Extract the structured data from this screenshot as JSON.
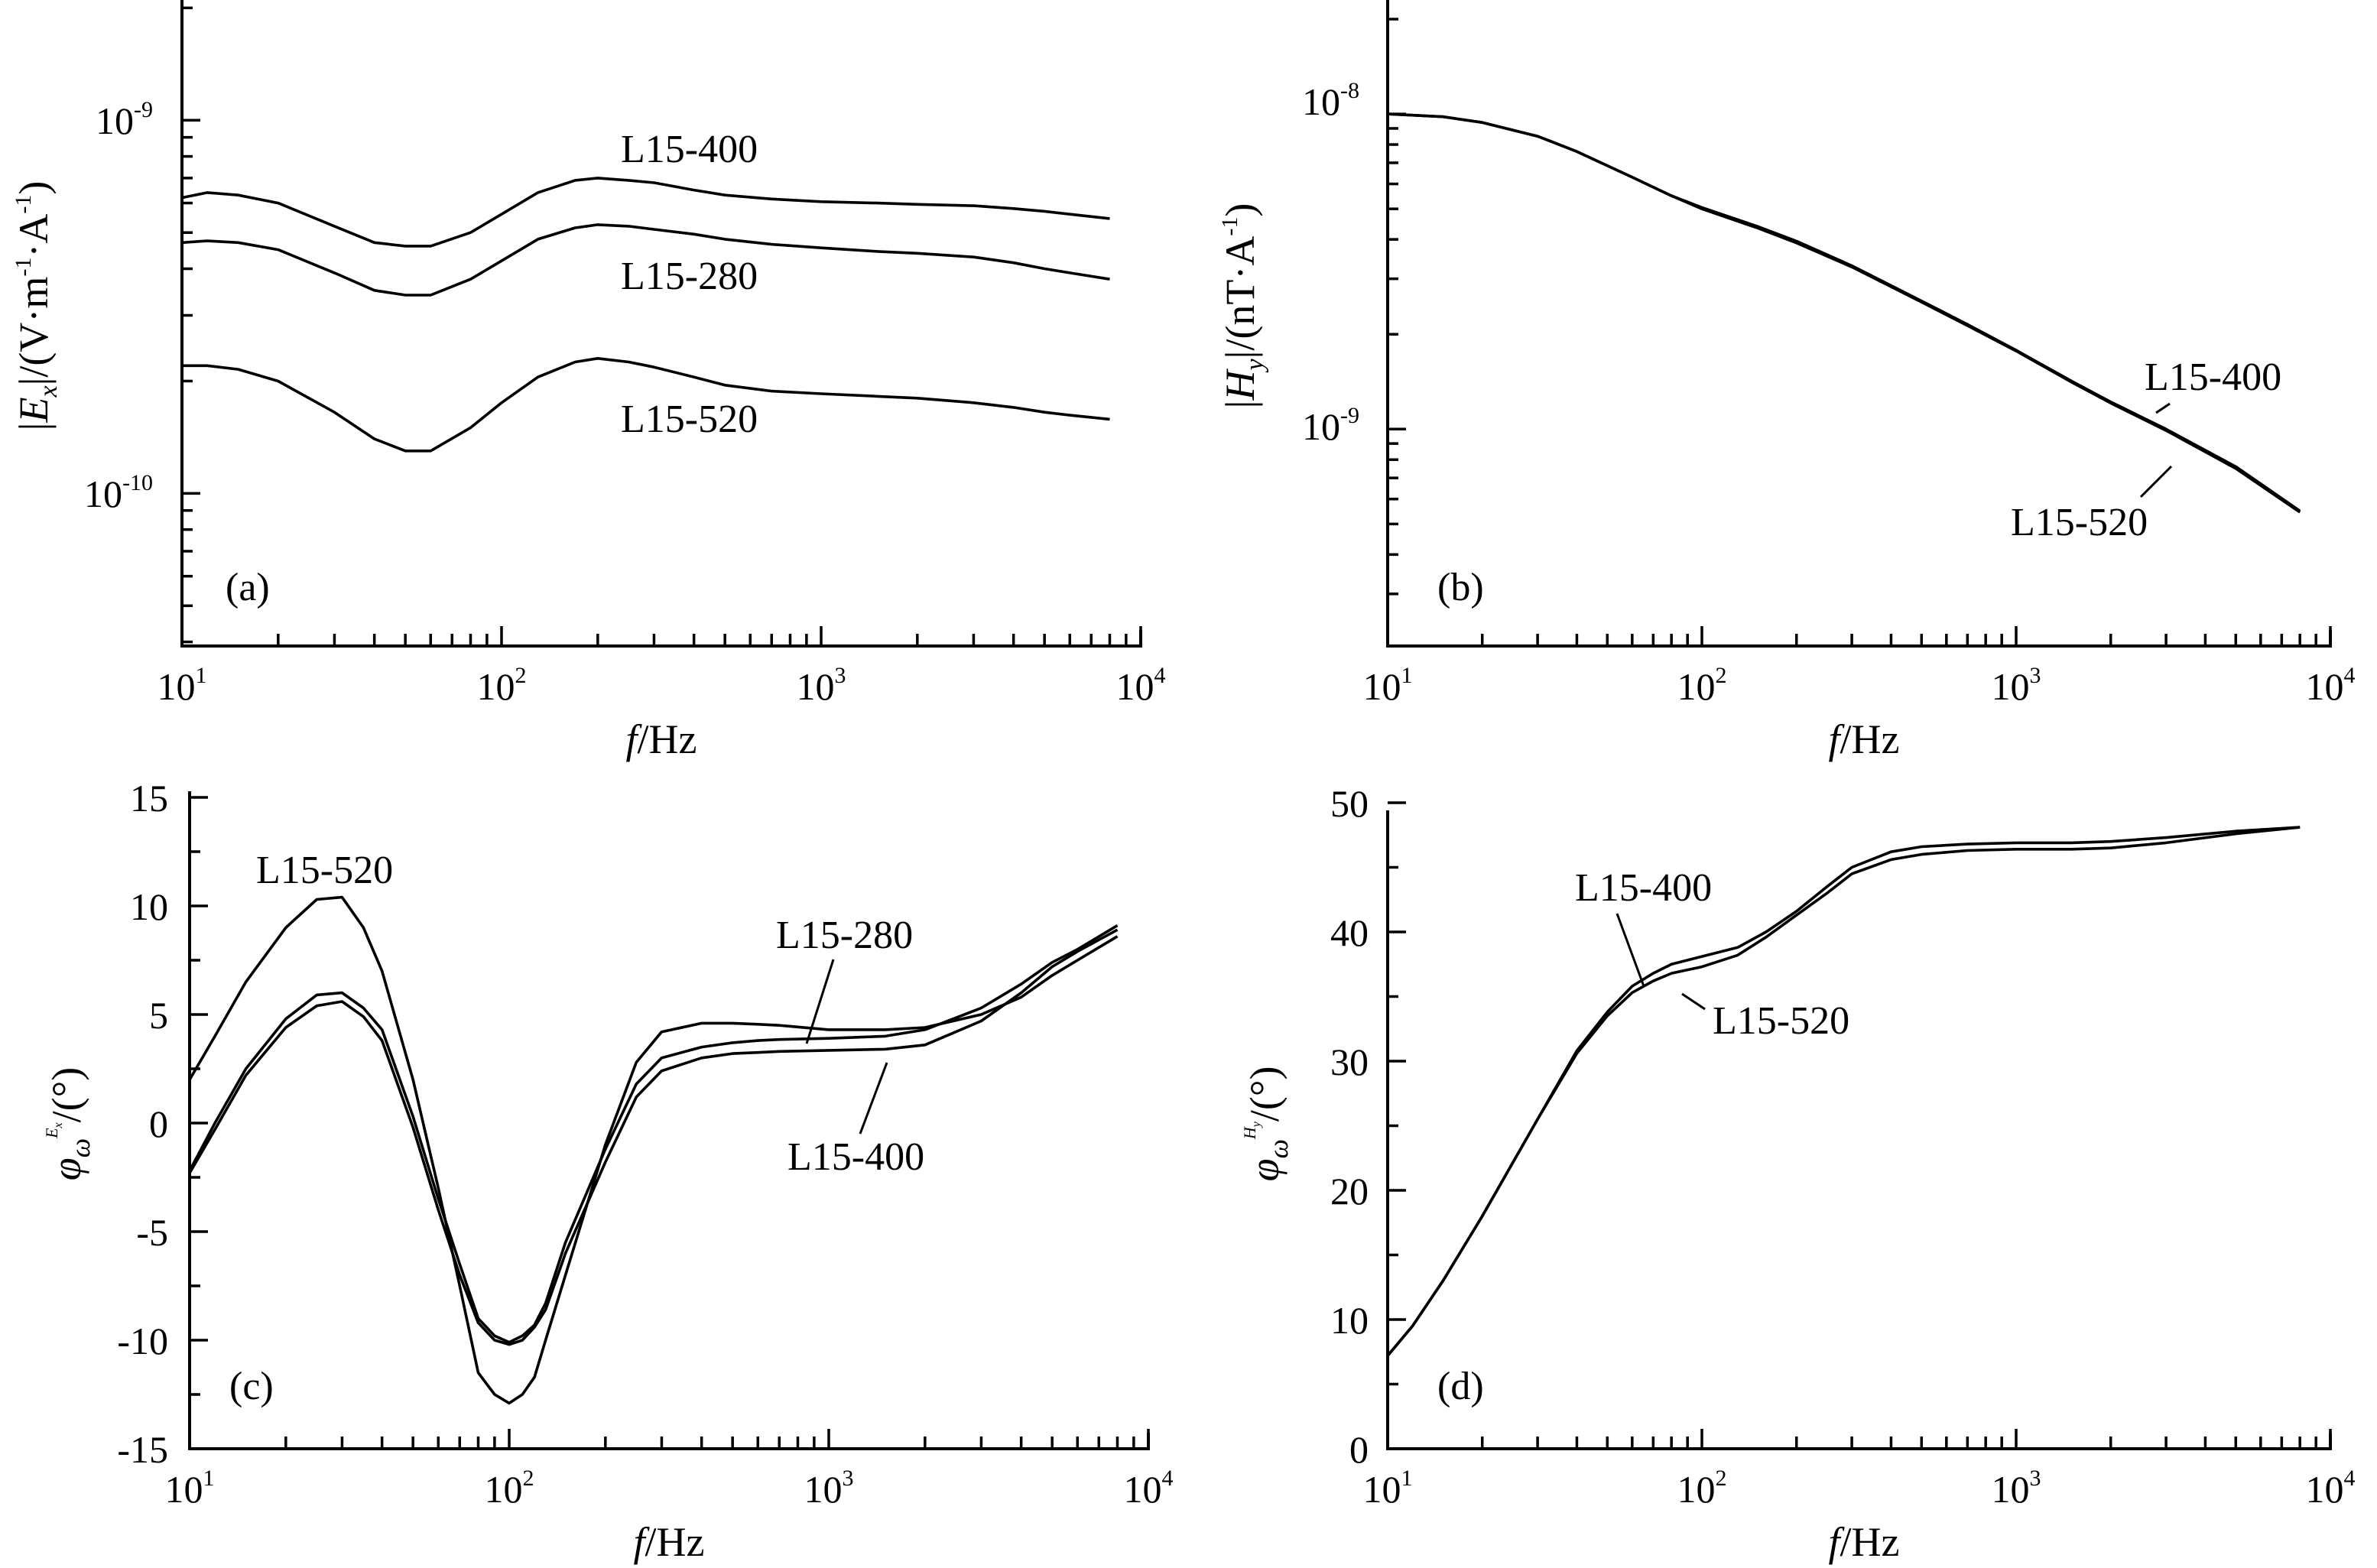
{
  "chart_data": [
    {
      "panel": "(a)",
      "type": "line",
      "xscale": "log",
      "yscale": "log",
      "xlabel": "f/Hz",
      "ylabel": "|Ex|/(V·m-1·A-1)",
      "xlim": [
        10,
        10000
      ],
      "ylim": [
        3.9e-11,
        2.1e-09
      ],
      "xtick_labels": [
        {
          "base": "10",
          "exp": "1"
        },
        {
          "base": "10",
          "exp": "2"
        },
        {
          "base": "10",
          "exp": "3"
        },
        {
          "base": "10",
          "exp": "4"
        }
      ],
      "ytick_labels": [
        {
          "base": "10",
          "exp": "-10"
        },
        {
          "base": "10",
          "exp": "-9"
        }
      ],
      "series": [
        {
          "name": "L15-400",
          "x": [
            10,
            12,
            15,
            20,
            30,
            40,
            50,
            60,
            80,
            100,
            130,
            170,
            200,
            250,
            300,
            400,
            500,
            700,
            1000,
            1500,
            2000,
            3000,
            4000,
            5000,
            6000,
            8000
          ],
          "y": [
            6.2e-10,
            6.4e-10,
            6.3e-10,
            6e-10,
            5.2e-10,
            4.7e-10,
            4.6e-10,
            4.6e-10,
            5e-10,
            5.6e-10,
            6.4e-10,
            6.9e-10,
            7e-10,
            6.9e-10,
            6.8e-10,
            6.5e-10,
            6.3e-10,
            6.15e-10,
            6.05e-10,
            6e-10,
            5.95e-10,
            5.9e-10,
            5.8e-10,
            5.7e-10,
            5.6e-10,
            5.45e-10
          ]
        },
        {
          "name": "L15-280",
          "x": [
            10,
            12,
            15,
            20,
            30,
            40,
            50,
            60,
            80,
            100,
            130,
            170,
            200,
            250,
            300,
            400,
            500,
            700,
            1000,
            1500,
            2000,
            3000,
            4000,
            5000,
            6000,
            8000
          ],
          "y": [
            4.7e-10,
            4.75e-10,
            4.7e-10,
            4.5e-10,
            3.9e-10,
            3.5e-10,
            3.4e-10,
            3.4e-10,
            3.75e-10,
            4.2e-10,
            4.8e-10,
            5.15e-10,
            5.25e-10,
            5.2e-10,
            5.1e-10,
            4.95e-10,
            4.8e-10,
            4.65e-10,
            4.55e-10,
            4.45e-10,
            4.4e-10,
            4.3e-10,
            4.15e-10,
            4e-10,
            3.9e-10,
            3.75e-10
          ]
        },
        {
          "name": "L15-520",
          "x": [
            10,
            12,
            15,
            20,
            30,
            40,
            50,
            60,
            80,
            100,
            130,
            170,
            200,
            250,
            300,
            400,
            500,
            700,
            1000,
            1500,
            2000,
            3000,
            4000,
            5000,
            6000,
            8000
          ],
          "y": [
            2.2e-10,
            2.2e-10,
            2.15e-10,
            2e-10,
            1.65e-10,
            1.4e-10,
            1.3e-10,
            1.3e-10,
            1.5e-10,
            1.75e-10,
            2.05e-10,
            2.25e-10,
            2.3e-10,
            2.25e-10,
            2.18e-10,
            2.05e-10,
            1.95e-10,
            1.88e-10,
            1.85e-10,
            1.82e-10,
            1.8e-10,
            1.75e-10,
            1.7e-10,
            1.65e-10,
            1.62e-10,
            1.58e-10
          ]
        }
      ],
      "annotations": [
        "L15-400",
        "L15-280",
        "L15-520"
      ]
    },
    {
      "panel": "(b)",
      "type": "line",
      "xscale": "log",
      "yscale": "log",
      "xlabel": "f/Hz",
      "ylabel": "|Hy|/(nT·A-1)",
      "xlim": [
        10,
        10000
      ],
      "ylim": [
        2.05e-10,
        2.3e-08
      ],
      "xtick_labels": [
        {
          "base": "10",
          "exp": "1"
        },
        {
          "base": "10",
          "exp": "2"
        },
        {
          "base": "10",
          "exp": "3"
        },
        {
          "base": "10",
          "exp": "4"
        }
      ],
      "ytick_labels": [
        {
          "base": "10",
          "exp": "-9"
        },
        {
          "base": "10",
          "exp": "-8"
        }
      ],
      "series": [
        {
          "name": "L15-400",
          "x": [
            10,
            15,
            20,
            30,
            40,
            60,
            80,
            100,
            150,
            200,
            300,
            500,
            700,
            1000,
            1500,
            2000,
            3000,
            5000,
            8000
          ],
          "y": [
            1e-08,
            9.8e-09,
            9.4e-09,
            8.5e-09,
            7.6e-09,
            6.3e-09,
            5.5e-09,
            5.05e-09,
            4.4e-09,
            3.95e-09,
            3.3e-09,
            2.55e-09,
            2.15e-09,
            1.78e-09,
            1.42e-09,
            1.22e-09,
            1e-09,
            7.6e-10,
            5.5e-10
          ]
        },
        {
          "name": "L15-520",
          "x": [
            10,
            15,
            20,
            30,
            40,
            60,
            80,
            100,
            150,
            200,
            300,
            500,
            700,
            1000,
            1500,
            2000,
            3000,
            5000,
            8000
          ],
          "y": [
            1e-08,
            9.8e-09,
            9.4e-09,
            8.5e-09,
            7.6e-09,
            6.3e-09,
            5.5e-09,
            5e-09,
            4.35e-09,
            3.9e-09,
            3.27e-09,
            2.53e-09,
            2.13e-09,
            1.77e-09,
            1.41e-09,
            1.21e-09,
            9.9e-10,
            7.5e-10,
            5.45e-10
          ]
        }
      ],
      "annotations": [
        "L15-400",
        "L15-520"
      ]
    },
    {
      "panel": "(c)",
      "type": "line",
      "xscale": "log",
      "xlabel": "f/Hz",
      "ylabel": "φω^Ex/(°)",
      "xlim": [
        10,
        10000
      ],
      "ylim": [
        -15,
        15
      ],
      "xtick_labels": [
        {
          "base": "10",
          "exp": "1"
        },
        {
          "base": "10",
          "exp": "2"
        },
        {
          "base": "10",
          "exp": "3"
        },
        {
          "base": "10",
          "exp": "4"
        }
      ],
      "ytick_labels": [
        "-15",
        "-10",
        "-5",
        "0",
        "5",
        "10",
        "15"
      ],
      "series": [
        {
          "name": "L15-520",
          "x": [
            10,
            12,
            15,
            20,
            25,
            30,
            35,
            40,
            50,
            60,
            70,
            80,
            90,
            100,
            110,
            120,
            130,
            150,
            200,
            250,
            300,
            400,
            500,
            600,
            700,
            1000,
            1500,
            2000,
            3000,
            4000,
            5000,
            6000,
            8000
          ],
          "y": [
            2.0,
            4.0,
            6.5,
            9.0,
            10.3,
            10.4,
            9.0,
            7.0,
            2.0,
            -3.0,
            -7.5,
            -11.5,
            -12.5,
            -12.9,
            -12.5,
            -11.7,
            -10.0,
            -7.0,
            -1.0,
            2.8,
            4.2,
            4.6,
            4.6,
            4.55,
            4.5,
            4.3,
            4.3,
            4.4,
            5.0,
            5.8,
            6.8,
            7.5,
            8.6
          ]
        },
        {
          "name": "L15-280",
          "x": [
            10,
            12,
            15,
            20,
            25,
            30,
            35,
            40,
            50,
            60,
            70,
            80,
            90,
            100,
            110,
            120,
            130,
            150,
            200,
            250,
            300,
            400,
            500,
            600,
            700,
            1000,
            1500,
            2000,
            3000,
            4000,
            5000,
            6000,
            8000
          ],
          "y": [
            -2.2,
            0.0,
            2.5,
            4.8,
            5.9,
            6.0,
            5.3,
            4.3,
            0.3,
            -3.5,
            -6.5,
            -9.0,
            -9.8,
            -10.1,
            -9.8,
            -9.3,
            -8.3,
            -5.5,
            -1.2,
            1.8,
            3.0,
            3.5,
            3.7,
            3.8,
            3.85,
            3.9,
            4.0,
            4.3,
            5.3,
            6.4,
            7.4,
            8.0,
            9.1
          ]
        },
        {
          "name": "L15-400",
          "x": [
            10,
            12,
            15,
            20,
            25,
            30,
            35,
            40,
            50,
            60,
            70,
            80,
            90,
            100,
            110,
            120,
            130,
            150,
            200,
            250,
            300,
            400,
            500,
            600,
            700,
            1000,
            1500,
            2000,
            3000,
            4000,
            5000,
            6000,
            8000
          ],
          "y": [
            -2.3,
            -0.3,
            2.2,
            4.4,
            5.4,
            5.6,
            4.9,
            3.8,
            -0.2,
            -4.0,
            -7.0,
            -9.2,
            -10.0,
            -10.2,
            -10.0,
            -9.4,
            -8.6,
            -6.0,
            -1.8,
            1.2,
            2.4,
            3.0,
            3.2,
            3.25,
            3.3,
            3.35,
            3.4,
            3.6,
            4.7,
            6.0,
            7.2,
            7.9,
            8.9
          ]
        }
      ],
      "annotations": [
        "L15-520",
        "L15-280",
        "L15-400"
      ]
    },
    {
      "panel": "(d)",
      "type": "line",
      "xscale": "log",
      "xlabel": "f/Hz",
      "ylabel": "φω^Hy/(°)",
      "xlim": [
        10,
        10000
      ],
      "ylim": [
        0,
        50
      ],
      "xtick_labels": [
        {
          "base": "10",
          "exp": "1"
        },
        {
          "base": "10",
          "exp": "2"
        },
        {
          "base": "10",
          "exp": "3"
        },
        {
          "base": "10",
          "exp": "4"
        }
      ],
      "ytick_labels": [
        "0",
        "10",
        "20",
        "30",
        "40",
        "50"
      ],
      "series": [
        {
          "name": "L15-400",
          "x": [
            10,
            12,
            15,
            20,
            30,
            40,
            50,
            60,
            70,
            80,
            100,
            130,
            160,
            200,
            250,
            300,
            400,
            500,
            700,
            1000,
            1500,
            2000,
            3000,
            5000,
            8000
          ],
          "y": [
            7.2,
            9.5,
            13.0,
            18.0,
            25.5,
            30.8,
            33.8,
            35.8,
            36.8,
            37.5,
            38.1,
            38.8,
            40.0,
            41.6,
            43.5,
            45.0,
            46.2,
            46.6,
            46.8,
            46.9,
            46.9,
            47.0,
            47.3,
            47.8,
            48.1
          ]
        },
        {
          "name": "L15-520",
          "x": [
            10,
            12,
            15,
            20,
            30,
            40,
            50,
            60,
            70,
            80,
            100,
            130,
            160,
            200,
            250,
            300,
            400,
            500,
            700,
            1000,
            1500,
            2000,
            3000,
            5000,
            8000
          ],
          "y": [
            7.2,
            9.5,
            13.0,
            18.0,
            25.5,
            30.6,
            33.5,
            35.3,
            36.2,
            36.8,
            37.3,
            38.2,
            39.6,
            41.3,
            43.0,
            44.5,
            45.6,
            46.0,
            46.3,
            46.4,
            46.4,
            46.5,
            46.9,
            47.6,
            48.1
          ]
        }
      ],
      "annotations": [
        "L15-400",
        "L15-520"
      ]
    }
  ]
}
